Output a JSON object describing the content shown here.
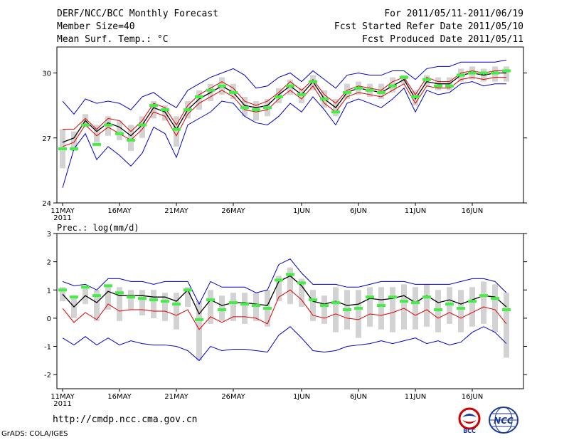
{
  "header": {
    "title": "DERF/NCC/BCC Monthly Forecast",
    "member_size": "Member Size=40",
    "variable": "Mean Surf. Temp.: °C",
    "period": "For 2011/05/11-2011/06/19",
    "started": "Fcst Started Refer Date 2011/05/10",
    "produced": "Fcst Produced Date 2011/05/11"
  },
  "footer": {
    "url": "http://cmdp.ncc.cma.gov.cn",
    "grads": "GrADS: COLA/IGES",
    "logo_bcc": "BCC",
    "logo_ncc": "NCC"
  },
  "colors": {
    "ensemble_mean": "#000000",
    "upper_bound": "#0000cc",
    "lower_bound": "#0000cc",
    "red_line": "#dd0000",
    "median_marker": "#44ee44",
    "range_box": "#d3d3d3"
  },
  "chart_data": [
    {
      "type": "line",
      "title": "Mean Surf. Temp.: °C",
      "ylim": [
        24,
        31.2
      ],
      "yticks": [
        24,
        27,
        30
      ],
      "xticks": [
        {
          "day": 0,
          "label": "11MAY",
          "sub": "2011"
        },
        {
          "day": 5,
          "label": "16MAY"
        },
        {
          "day": 10,
          "label": "21MAY"
        },
        {
          "day": 15,
          "label": "26MAY"
        },
        {
          "day": 21,
          "label": "1JUN"
        },
        {
          "day": 26,
          "label": "6JUN"
        },
        {
          "day": 31,
          "label": "11JUN"
        },
        {
          "day": 36,
          "label": "16JUN"
        }
      ],
      "series": [
        {
          "name": "ensemble mean",
          "values": [
            26.8,
            27.0,
            27.8,
            27.3,
            27.7,
            27.5,
            27.1,
            27.6,
            28.4,
            28.2,
            27.4,
            28.3,
            28.8,
            29.1,
            29.4,
            29.1,
            28.5,
            28.4,
            28.5,
            29.0,
            29.4,
            29.0,
            29.6,
            28.8,
            28.4,
            29.1,
            29.3,
            29.2,
            29.1,
            29.4,
            29.7,
            28.8,
            29.6,
            29.5,
            29.5,
            29.9,
            30.0,
            29.9,
            30.0,
            30.0
          ]
        },
        {
          "name": "upper",
          "values": [
            28.7,
            28.1,
            28.8,
            28.6,
            28.7,
            28.6,
            28.3,
            28.9,
            29.1,
            28.7,
            28.4,
            29.2,
            29.5,
            29.8,
            30.0,
            30.2,
            29.9,
            29.3,
            29.4,
            29.8,
            30.0,
            29.6,
            30.1,
            29.7,
            29.3,
            29.9,
            30.0,
            29.9,
            29.9,
            30.1,
            30.1,
            29.7,
            30.2,
            30.3,
            30.3,
            30.5,
            30.5,
            30.5,
            30.5,
            30.6
          ]
        },
        {
          "name": "lower",
          "values": [
            24.7,
            26.5,
            27.2,
            26.0,
            26.6,
            26.2,
            25.7,
            26.3,
            27.5,
            27.2,
            26.1,
            27.6,
            27.9,
            28.2,
            28.7,
            28.6,
            28.0,
            27.7,
            27.6,
            28.0,
            28.6,
            28.2,
            28.9,
            28.3,
            27.6,
            28.6,
            28.8,
            28.6,
            28.4,
            28.8,
            29.3,
            28.2,
            29.2,
            29.0,
            29.1,
            29.5,
            29.6,
            29.4,
            29.5,
            29.5
          ]
        },
        {
          "name": "red",
          "values": [
            27.4,
            27.4,
            27.9,
            27.4,
            27.9,
            27.8,
            27.3,
            27.8,
            28.6,
            28.4,
            27.6,
            28.5,
            29.0,
            29.3,
            29.6,
            29.3,
            28.7,
            28.5,
            28.7,
            29.1,
            29.6,
            29.2,
            29.7,
            29.0,
            28.6,
            29.2,
            29.4,
            29.3,
            29.2,
            29.6,
            29.8,
            29.0,
            29.8,
            29.6,
            29.6,
            30.0,
            30.1,
            30.0,
            30.1,
            30.1
          ]
        },
        {
          "name": "lower red",
          "values": [
            26.6,
            26.8,
            27.6,
            27.1,
            27.5,
            27.2,
            26.9,
            27.4,
            28.2,
            28.0,
            27.1,
            28.1,
            28.6,
            28.9,
            29.2,
            28.9,
            28.3,
            28.2,
            28.3,
            28.8,
            29.2,
            28.8,
            29.4,
            28.6,
            28.2,
            28.9,
            29.1,
            29.0,
            28.9,
            29.2,
            29.5,
            28.6,
            29.4,
            29.3,
            29.3,
            29.7,
            29.8,
            29.7,
            29.8,
            29.8
          ]
        },
        {
          "name": "range low",
          "values": [
            25.6,
            26.4,
            27.5,
            26.8,
            27.1,
            26.9,
            26.4,
            27.0,
            27.9,
            27.8,
            26.6,
            27.9,
            28.3,
            28.7,
            29.0,
            28.8,
            28.0,
            27.8,
            28.0,
            28.6,
            29.0,
            28.6,
            29.2,
            28.4,
            28.0,
            28.8,
            29.0,
            28.9,
            28.8,
            29.1,
            29.5,
            28.5,
            29.4,
            29.2,
            29.2,
            29.6,
            29.7,
            29.6,
            29.6,
            29.6
          ]
        },
        {
          "name": "range high",
          "values": [
            27.4,
            27.3,
            28.1,
            27.6,
            28.0,
            27.8,
            27.6,
            28.0,
            28.7,
            28.5,
            28.0,
            28.7,
            29.2,
            29.5,
            29.8,
            29.5,
            28.9,
            28.7,
            28.8,
            29.3,
            29.7,
            29.3,
            29.9,
            29.2,
            28.8,
            29.5,
            29.6,
            29.5,
            29.5,
            29.8,
            29.9,
            29.2,
            29.9,
            29.8,
            29.8,
            30.2,
            30.3,
            30.2,
            30.3,
            30.3
          ]
        },
        {
          "name": "median",
          "values": [
            26.5,
            26.5,
            27.6,
            26.7,
            27.6,
            27.2,
            26.9,
            27.6,
            28.5,
            28.3,
            27.4,
            28.3,
            28.9,
            29.2,
            29.4,
            29.1,
            28.4,
            28.3,
            28.4,
            28.9,
            29.4,
            29.0,
            29.6,
            28.8,
            28.2,
            29.1,
            29.3,
            29.2,
            29.1,
            29.4,
            29.8,
            28.9,
            29.7,
            29.4,
            29.4,
            29.9,
            30.0,
            30.0,
            30.0,
            30.1
          ]
        }
      ]
    },
    {
      "type": "line",
      "title": "Prec.: log(mm/d)",
      "ylim": [
        -2.5,
        3
      ],
      "yticks": [
        -2,
        -1,
        0,
        1,
        2,
        3
      ],
      "xticks": [
        {
          "day": 0,
          "label": "11MAY",
          "sub": "2011"
        },
        {
          "day": 5,
          "label": "16MAY"
        },
        {
          "day": 10,
          "label": "21MAY"
        },
        {
          "day": 15,
          "label": "26MAY"
        },
        {
          "day": 21,
          "label": "1JUN"
        },
        {
          "day": 26,
          "label": "6JUN"
        },
        {
          "day": 31,
          "label": "11JUN"
        },
        {
          "day": 36,
          "label": "16JUN"
        }
      ],
      "series": [
        {
          "name": "ensemble mean",
          "values": [
            0.85,
            0.4,
            0.8,
            0.55,
            0.95,
            0.8,
            0.8,
            0.8,
            0.75,
            0.75,
            0.6,
            1.0,
            0.15,
            0.65,
            0.45,
            0.55,
            0.55,
            0.5,
            0.45,
            1.3,
            1.5,
            1.15,
            0.6,
            0.5,
            0.6,
            0.45,
            0.5,
            0.7,
            0.65,
            0.7,
            0.8,
            0.55,
            0.8,
            0.55,
            0.65,
            0.5,
            0.65,
            0.8,
            0.75,
            0.4
          ]
        },
        {
          "name": "upper",
          "values": [
            1.3,
            1.15,
            1.2,
            1.0,
            1.4,
            1.4,
            1.3,
            1.3,
            1.2,
            1.3,
            1.3,
            1.3,
            0.5,
            1.3,
            1.1,
            1.1,
            1.1,
            0.9,
            1.0,
            1.9,
            2.1,
            1.6,
            1.2,
            1.2,
            1.2,
            1.1,
            1.1,
            1.2,
            1.3,
            1.3,
            1.3,
            1.2,
            1.2,
            1.2,
            1.2,
            1.3,
            1.4,
            1.4,
            1.3,
            0.9
          ]
        },
        {
          "name": "lower",
          "values": [
            -0.7,
            -0.95,
            -0.65,
            -0.95,
            -0.7,
            -0.95,
            -0.8,
            -0.9,
            -0.95,
            -0.95,
            -1.0,
            -1.15,
            -1.5,
            -1.0,
            -1.15,
            -1.1,
            -1.1,
            -1.15,
            -1.2,
            -0.6,
            -0.3,
            -0.7,
            -1.15,
            -1.2,
            -1.15,
            -1.0,
            -0.95,
            -0.9,
            -0.8,
            -0.9,
            -0.8,
            -0.7,
            -0.9,
            -0.8,
            -0.95,
            -0.85,
            -0.5,
            -0.3,
            -0.5,
            -0.9
          ]
        },
        {
          "name": "red",
          "values": [
            0.35,
            -0.15,
            0.2,
            -0.05,
            0.5,
            0.25,
            0.3,
            0.3,
            0.25,
            0.25,
            0.1,
            0.3,
            -0.4,
            0.05,
            -0.15,
            0.05,
            0.05,
            0.0,
            -0.2,
            0.75,
            1.0,
            0.65,
            0.1,
            0.0,
            0.15,
            0.0,
            -0.05,
            0.15,
            0.1,
            0.2,
            0.35,
            0.1,
            0.3,
            0.0,
            0.2,
            0.0,
            0.2,
            0.4,
            0.3,
            -0.2
          ]
        },
        {
          "name": "range low",
          "values": [
            0.6,
            0.0,
            0.5,
            -0.1,
            0.3,
            -0.1,
            0.3,
            0.1,
            0.0,
            -0.1,
            -0.4,
            0.4,
            -1.5,
            -0.2,
            -0.1,
            -0.1,
            -0.2,
            -0.1,
            -0.3,
            0.6,
            0.5,
            0.4,
            -0.1,
            -0.2,
            -0.5,
            -0.4,
            -0.7,
            -0.3,
            -0.4,
            -0.5,
            -0.4,
            -0.4,
            -0.3,
            -0.5,
            -0.2,
            -0.5,
            -0.3,
            -0.2,
            -0.5,
            -1.4
          ]
        },
        {
          "name": "range high",
          "values": [
            1.1,
            0.8,
            1.1,
            1.0,
            1.2,
            1.1,
            1.0,
            1.0,
            1.0,
            0.9,
            0.9,
            1.1,
            0.6,
            1.0,
            0.8,
            0.9,
            0.9,
            0.9,
            1.0,
            1.5,
            1.8,
            1.4,
            1.0,
            0.8,
            1.1,
            1.0,
            1.0,
            1.1,
            1.1,
            1.1,
            1.2,
            1.1,
            1.2,
            1.0,
            1.1,
            1.0,
            1.1,
            1.3,
            1.2,
            0.9
          ]
        },
        {
          "name": "median",
          "values": [
            1.0,
            0.75,
            1.1,
            0.8,
            1.15,
            0.9,
            0.75,
            0.7,
            0.65,
            0.6,
            0.5,
            1.0,
            -0.05,
            0.65,
            0.3,
            0.55,
            0.5,
            0.45,
            0.35,
            1.35,
            1.55,
            1.25,
            0.65,
            0.45,
            0.55,
            0.3,
            0.35,
            0.75,
            0.45,
            0.75,
            0.6,
            0.55,
            0.75,
            0.3,
            0.5,
            0.35,
            0.6,
            0.8,
            0.7,
            0.3
          ]
        }
      ]
    }
  ]
}
